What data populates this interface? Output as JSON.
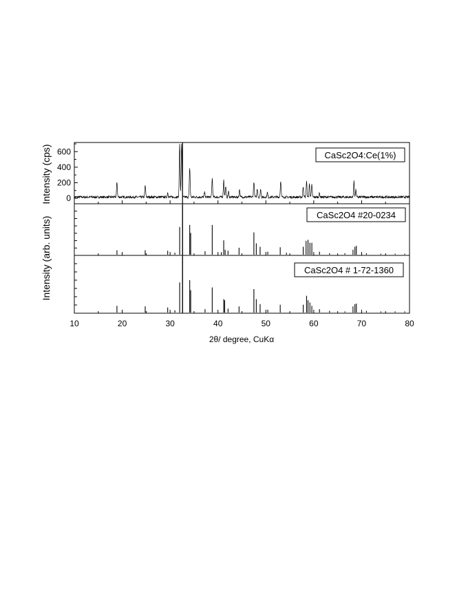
{
  "chart_data": {
    "type": "line",
    "xlabel": "2θ/ degree, CuKα",
    "xlim": [
      10,
      80
    ],
    "x_ticks": [
      "10",
      "20",
      "30",
      "40",
      "50",
      "60",
      "70",
      "80"
    ],
    "ylabel_shared": "Intensity (arb. units)",
    "reference_line_x": 32.6,
    "panels": [
      {
        "legend": "CaSc2O4:Ce(1%)",
        "type": "line",
        "ylabel": "Intensity (cps)",
        "ylim": [
          0,
          700
        ],
        "y_ticks": [
          "0",
          "200",
          "400",
          "600"
        ],
        "noise_level": 30,
        "peaks": [
          {
            "x": 18.9,
            "y": 190
          },
          {
            "x": 24.8,
            "y": 150
          },
          {
            "x": 29.5,
            "y": 60
          },
          {
            "x": 32.0,
            "y": 700
          },
          {
            "x": 32.4,
            "y": 700
          },
          {
            "x": 34.1,
            "y": 380
          },
          {
            "x": 37.2,
            "y": 60
          },
          {
            "x": 38.8,
            "y": 240
          },
          {
            "x": 41.2,
            "y": 220
          },
          {
            "x": 41.6,
            "y": 140
          },
          {
            "x": 42.2,
            "y": 70
          },
          {
            "x": 44.5,
            "y": 100
          },
          {
            "x": 47.5,
            "y": 200
          },
          {
            "x": 48.2,
            "y": 110
          },
          {
            "x": 48.9,
            "y": 100
          },
          {
            "x": 50.3,
            "y": 60
          },
          {
            "x": 53.1,
            "y": 210
          },
          {
            "x": 57.8,
            "y": 140
          },
          {
            "x": 58.5,
            "y": 200
          },
          {
            "x": 59.1,
            "y": 170
          },
          {
            "x": 59.6,
            "y": 160
          },
          {
            "x": 61.2,
            "y": 50
          },
          {
            "x": 68.4,
            "y": 200
          },
          {
            "x": 68.8,
            "y": 90
          }
        ]
      },
      {
        "legend": "CaSc2O4 #20-0234",
        "type": "stick",
        "sticks": [
          {
            "x": 18.9,
            "h": 0.09
          },
          {
            "x": 24.8,
            "h": 0.09
          },
          {
            "x": 29.5,
            "h": 0.08
          },
          {
            "x": 31.0,
            "h": 0.04
          },
          {
            "x": 32.0,
            "h": 0.56
          },
          {
            "x": 32.6,
            "h": 1.0
          },
          {
            "x": 34.1,
            "h": 0.6
          },
          {
            "x": 34.3,
            "h": 0.44
          },
          {
            "x": 37.3,
            "h": 0.07
          },
          {
            "x": 38.8,
            "h": 0.6
          },
          {
            "x": 40.7,
            "h": 0.05
          },
          {
            "x": 41.2,
            "h": 0.29
          },
          {
            "x": 41.5,
            "h": 0.1
          },
          {
            "x": 42.1,
            "h": 0.08
          },
          {
            "x": 44.4,
            "h": 0.14
          },
          {
            "x": 47.5,
            "h": 0.45
          },
          {
            "x": 48.0,
            "h": 0.23
          },
          {
            "x": 48.8,
            "h": 0.16
          },
          {
            "x": 50.4,
            "h": 0.06
          },
          {
            "x": 53.0,
            "h": 0.15
          },
          {
            "x": 54.3,
            "h": 0.04
          },
          {
            "x": 57.8,
            "h": 0.16
          },
          {
            "x": 58.4,
            "h": 0.28
          },
          {
            "x": 58.8,
            "h": 0.3
          },
          {
            "x": 59.2,
            "h": 0.24
          },
          {
            "x": 59.6,
            "h": 0.24
          },
          {
            "x": 61.2,
            "h": 0.06
          },
          {
            "x": 63.3,
            "h": 0.03
          },
          {
            "x": 66.5,
            "h": 0.03
          },
          {
            "x": 68.2,
            "h": 0.1
          },
          {
            "x": 68.6,
            "h": 0.16
          },
          {
            "x": 68.9,
            "h": 0.18
          },
          {
            "x": 71.0,
            "h": 0.03
          },
          {
            "x": 74.0,
            "h": 0.02
          },
          {
            "x": 77.0,
            "h": 0.02
          },
          {
            "x": 79.0,
            "h": 0.02
          }
        ]
      },
      {
        "legend": "CaSc2O4 # 1-72-1360",
        "type": "stick",
        "sticks": [
          {
            "x": 18.9,
            "h": 0.12
          },
          {
            "x": 24.8,
            "h": 0.11
          },
          {
            "x": 29.5,
            "h": 0.09
          },
          {
            "x": 31.0,
            "h": 0.04
          },
          {
            "x": 32.0,
            "h": 0.54
          },
          {
            "x": 32.6,
            "h": 1.0
          },
          {
            "x": 34.1,
            "h": 0.58
          },
          {
            "x": 34.3,
            "h": 0.4
          },
          {
            "x": 37.3,
            "h": 0.06
          },
          {
            "x": 38.8,
            "h": 0.45
          },
          {
            "x": 41.2,
            "h": 0.24
          },
          {
            "x": 41.4,
            "h": 0.22
          },
          {
            "x": 42.1,
            "h": 0.07
          },
          {
            "x": 44.4,
            "h": 0.11
          },
          {
            "x": 47.5,
            "h": 0.42
          },
          {
            "x": 48.0,
            "h": 0.24
          },
          {
            "x": 48.8,
            "h": 0.15
          },
          {
            "x": 50.4,
            "h": 0.05
          },
          {
            "x": 53.0,
            "h": 0.14
          },
          {
            "x": 57.8,
            "h": 0.14
          },
          {
            "x": 58.5,
            "h": 0.3
          },
          {
            "x": 58.8,
            "h": 0.22
          },
          {
            "x": 59.2,
            "h": 0.18
          },
          {
            "x": 59.6,
            "h": 0.12
          },
          {
            "x": 61.2,
            "h": 0.06
          },
          {
            "x": 63.3,
            "h": 0.03
          },
          {
            "x": 66.5,
            "h": 0.02
          },
          {
            "x": 68.2,
            "h": 0.11
          },
          {
            "x": 68.6,
            "h": 0.15
          },
          {
            "x": 68.9,
            "h": 0.16
          },
          {
            "x": 71.0,
            "h": 0.03
          },
          {
            "x": 74.0,
            "h": 0.02
          },
          {
            "x": 77.0,
            "h": 0.02
          },
          {
            "x": 79.0,
            "h": 0.02
          }
        ]
      }
    ]
  }
}
